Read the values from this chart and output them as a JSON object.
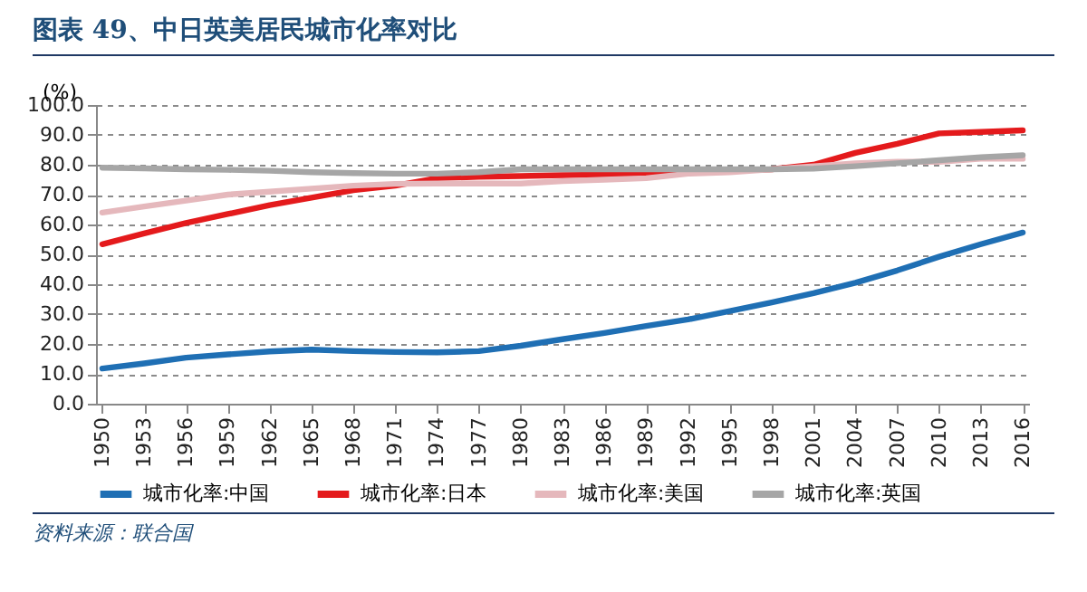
{
  "chart_data": {
    "type": "line",
    "title": "图表 49、中日英美居民城市化率对比",
    "ylabel": "(%)",
    "annotations": [
      "资料来源：联合国"
    ],
    "categories": [
      "1950",
      "1953",
      "1956",
      "1959",
      "1962",
      "1965",
      "1968",
      "1971",
      "1974",
      "1977",
      "1980",
      "1983",
      "1986",
      "1989",
      "1992",
      "1995",
      "1998",
      "2001",
      "2004",
      "2007",
      "2010",
      "2013",
      "2016"
    ],
    "series": [
      {
        "name": "城市化率:中国",
        "color": "#1f6fb4",
        "values": [
          11.8,
          13.5,
          15.4,
          16.5,
          17.5,
          18.1,
          17.6,
          17.3,
          17.2,
          17.6,
          19.4,
          21.6,
          23.7,
          26.0,
          28.2,
          31.0,
          33.9,
          37.0,
          40.5,
          44.6,
          49.2,
          53.4,
          57.3
        ]
      },
      {
        "name": "城市化率:日本",
        "color": "#e41a1c",
        "values": [
          53.4,
          57,
          60.5,
          63.5,
          66.5,
          69,
          71.5,
          73,
          75.5,
          76,
          76.2,
          76.5,
          76.7,
          77,
          77.5,
          78,
          78.5,
          80,
          84,
          87,
          90.5,
          91,
          91.5
        ]
      },
      {
        "name": "城市化率:美国",
        "color": "#e5b8bc",
        "values": [
          64,
          66,
          68,
          70,
          71,
          72,
          73,
          73.6,
          73.7,
          73.7,
          73.7,
          74.5,
          75,
          75.5,
          77,
          77.5,
          78.5,
          79.5,
          80.5,
          81,
          81,
          82,
          82
        ]
      },
      {
        "name": "城市化率:英国",
        "color": "#a6a6a6",
        "values": [
          79,
          78.8,
          78.5,
          78.3,
          78,
          77.5,
          77.2,
          77,
          77,
          77.5,
          78.5,
          78.5,
          78.5,
          78.5,
          78.5,
          78.5,
          78.5,
          78.7,
          79.5,
          80.5,
          81.5,
          82.5,
          83.2
        ]
      }
    ],
    "ylim": [
      0,
      100
    ],
    "yticks": [
      {
        "value": 0,
        "label": "0.0"
      },
      {
        "value": 10,
        "label": "10.0"
      },
      {
        "value": 20,
        "label": "20.0"
      },
      {
        "value": 30,
        "label": "30.0"
      },
      {
        "value": 40,
        "label": "40.0"
      },
      {
        "value": 50,
        "label": "50.0"
      },
      {
        "value": 60,
        "label": "60.0"
      },
      {
        "value": 70,
        "label": "70.0"
      },
      {
        "value": 80,
        "label": "80.0"
      },
      {
        "value": 90,
        "label": "90.0"
      },
      {
        "value": 100,
        "label": "100.0"
      }
    ],
    "grid": "y",
    "legend": "bottom",
    "line_style": "solid",
    "marker": "none"
  }
}
